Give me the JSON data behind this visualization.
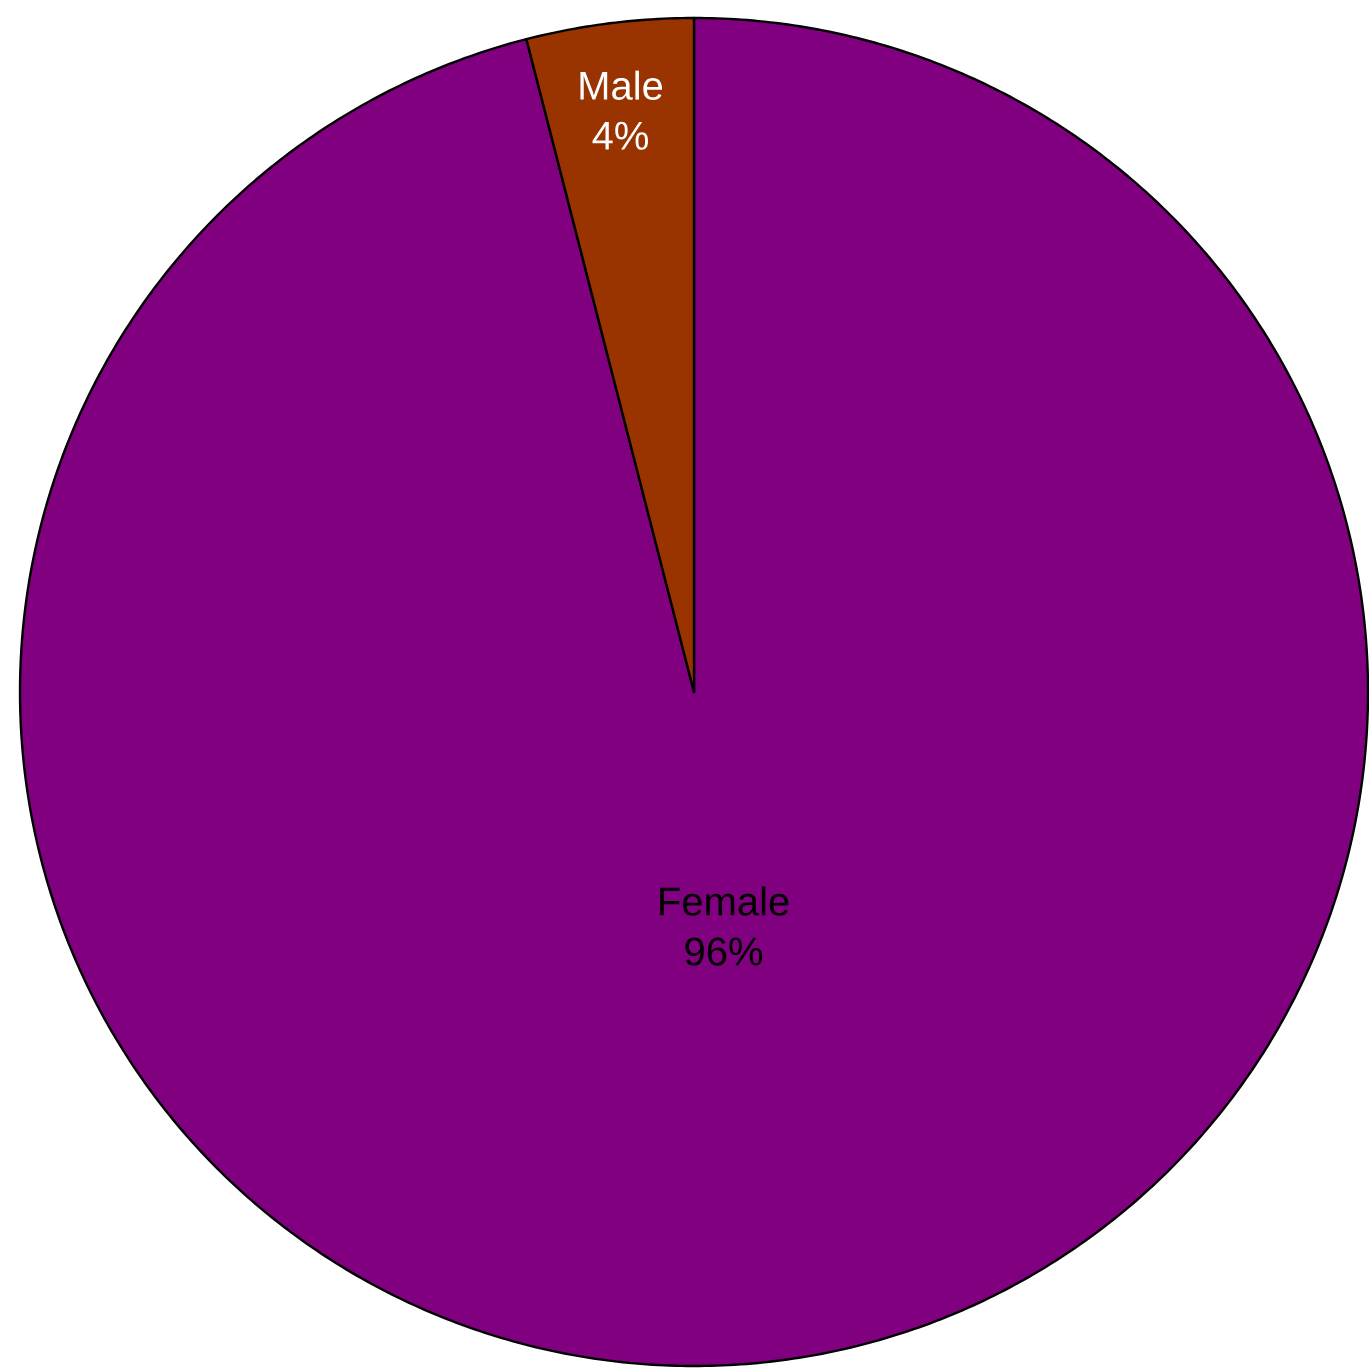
{
  "chart_data": {
    "type": "pie",
    "categories": [
      "Female",
      "Male"
    ],
    "values": [
      96,
      4
    ],
    "colors": [
      "#800080",
      "#993300"
    ],
    "value_labels": [
      "96%",
      "4%"
    ]
  }
}
